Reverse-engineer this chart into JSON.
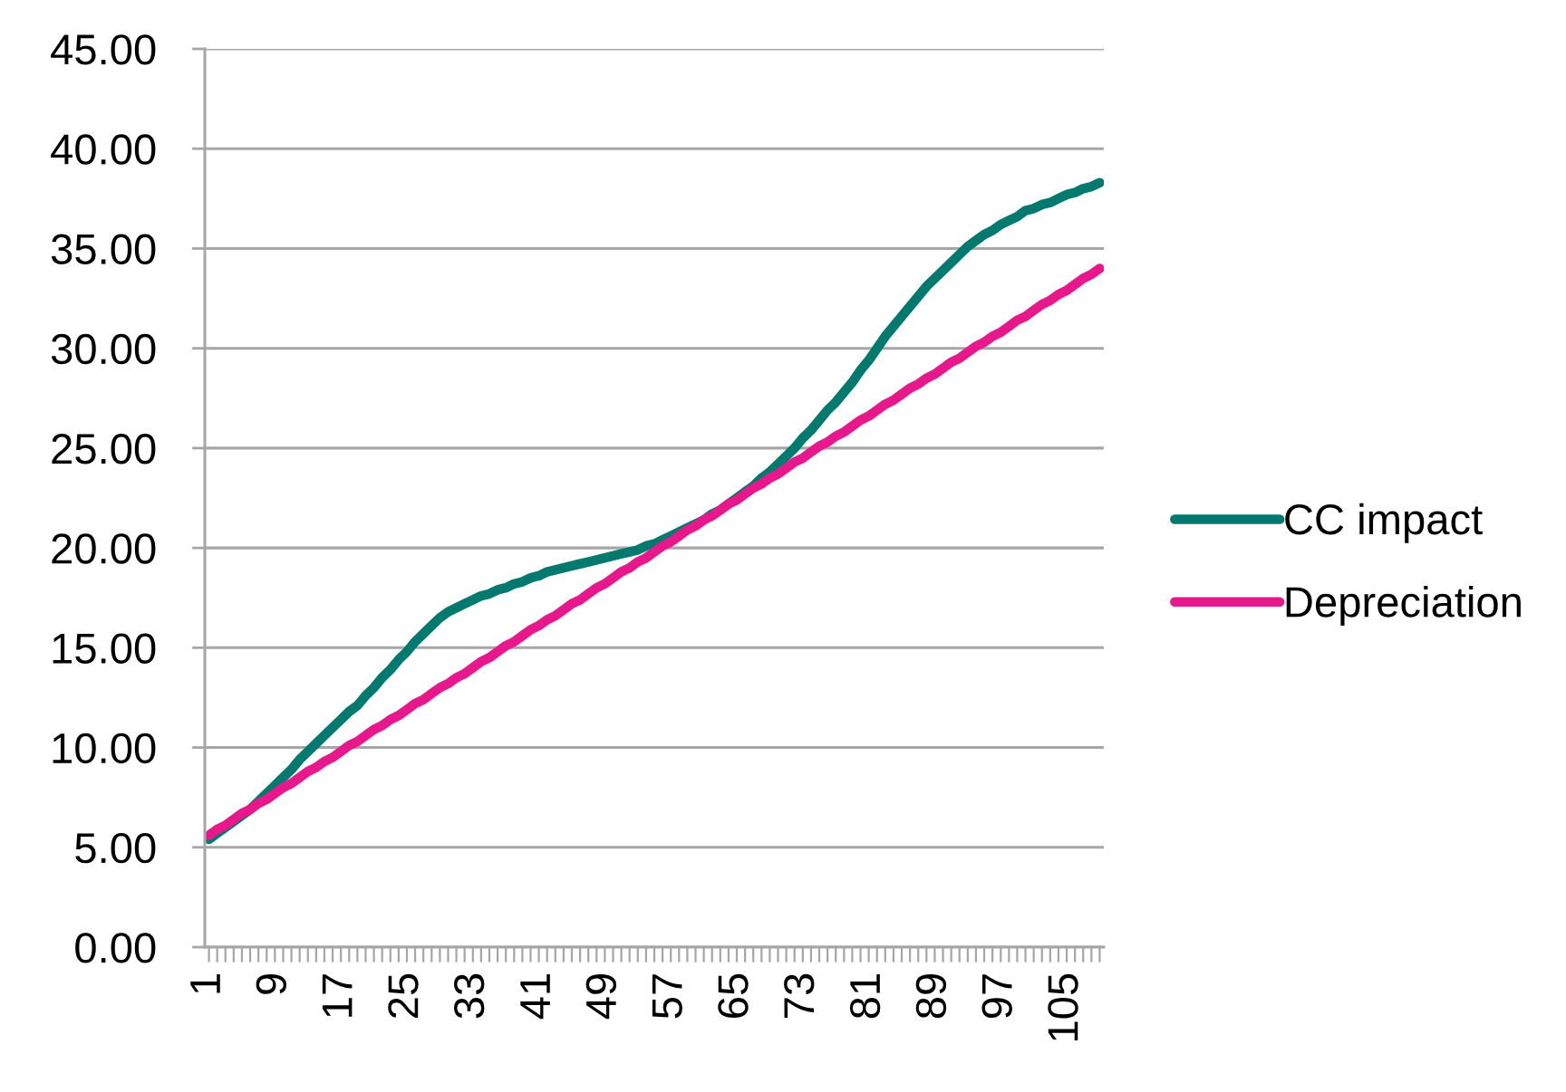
{
  "chart_data": {
    "type": "line",
    "categories": [
      "1",
      null,
      null,
      null,
      null,
      null,
      null,
      null,
      "9",
      null,
      null,
      null,
      null,
      null,
      null,
      null,
      "17",
      null,
      null,
      null,
      null,
      null,
      null,
      null,
      "25",
      null,
      null,
      null,
      null,
      null,
      null,
      null,
      "33",
      null,
      null,
      null,
      null,
      null,
      null,
      null,
      "41",
      null,
      null,
      null,
      null,
      null,
      null,
      null,
      "49",
      null,
      null,
      null,
      null,
      null,
      null,
      null,
      "57",
      null,
      null,
      null,
      null,
      null,
      null,
      null,
      "65",
      null,
      null,
      null,
      null,
      null,
      null,
      null,
      "73",
      null,
      null,
      null,
      null,
      null,
      null,
      null,
      "81",
      null,
      null,
      null,
      null,
      null,
      null,
      null,
      "89",
      null,
      null,
      null,
      null,
      null,
      null,
      null,
      "97",
      null,
      null,
      null,
      null,
      null,
      null,
      null,
      "105",
      null,
      null,
      null,
      null
    ],
    "series": [
      {
        "name": "CC impact",
        "color": "#007a6e",
        "values": [
          5.4,
          5.7,
          6.0,
          6.3,
          6.6,
          6.9,
          7.3,
          7.7,
          8.1,
          8.5,
          8.9,
          9.4,
          9.8,
          10.2,
          10.6,
          11.0,
          11.4,
          11.8,
          12.1,
          12.6,
          13.0,
          13.5,
          13.9,
          14.4,
          14.8,
          15.3,
          15.7,
          16.1,
          16.5,
          16.8,
          17.0,
          17.2,
          17.4,
          17.6,
          17.7,
          17.9,
          18.0,
          18.2,
          18.3,
          18.5,
          18.6,
          18.8,
          18.9,
          19.0,
          19.1,
          19.2,
          19.3,
          19.4,
          19.5,
          19.6,
          19.7,
          19.8,
          19.9,
          20.1,
          20.2,
          20.4,
          20.6,
          20.8,
          21.0,
          21.2,
          21.4,
          21.7,
          21.9,
          22.2,
          22.5,
          22.8,
          23.1,
          23.5,
          23.8,
          24.2,
          24.6,
          25.0,
          25.5,
          25.9,
          26.4,
          26.9,
          27.3,
          27.8,
          28.3,
          28.9,
          29.4,
          30.0,
          30.6,
          31.1,
          31.6,
          32.1,
          32.6,
          33.1,
          33.5,
          33.9,
          34.3,
          34.7,
          35.1,
          35.4,
          35.7,
          35.9,
          36.2,
          36.4,
          36.6,
          36.9,
          37.0,
          37.2,
          37.3,
          37.5,
          37.7,
          37.8,
          38.0,
          38.1,
          38.3
        ]
      },
      {
        "name": "Depreciation",
        "color": "#e8178c",
        "values": [
          5.6,
          5.9,
          6.1,
          6.4,
          6.7,
          6.9,
          7.2,
          7.4,
          7.7,
          8.0,
          8.2,
          8.5,
          8.8,
          9.0,
          9.3,
          9.5,
          9.8,
          10.1,
          10.3,
          10.6,
          10.9,
          11.1,
          11.4,
          11.6,
          11.9,
          12.2,
          12.4,
          12.7,
          13.0,
          13.2,
          13.5,
          13.7,
          14.0,
          14.3,
          14.5,
          14.8,
          15.1,
          15.3,
          15.6,
          15.9,
          16.1,
          16.4,
          16.6,
          16.9,
          17.2,
          17.4,
          17.7,
          18.0,
          18.2,
          18.5,
          18.8,
          19.0,
          19.3,
          19.5,
          19.8,
          20.1,
          20.3,
          20.6,
          20.9,
          21.1,
          21.4,
          21.6,
          21.9,
          22.2,
          22.4,
          22.7,
          23.0,
          23.2,
          23.5,
          23.7,
          24.0,
          24.3,
          24.5,
          24.8,
          25.1,
          25.3,
          25.6,
          25.8,
          26.1,
          26.4,
          26.6,
          26.9,
          27.2,
          27.4,
          27.7,
          28.0,
          28.2,
          28.5,
          28.7,
          29.0,
          29.3,
          29.5,
          29.8,
          30.1,
          30.3,
          30.6,
          30.8,
          31.1,
          31.4,
          31.6,
          31.9,
          32.2,
          32.4,
          32.7,
          32.9,
          33.2,
          33.5,
          33.7,
          34.0
        ]
      }
    ],
    "ylim": [
      0,
      45
    ],
    "yticks": [
      {
        "value": 0,
        "label": "0.00"
      },
      {
        "value": 5,
        "label": "5.00"
      },
      {
        "value": 10,
        "label": "10.00"
      },
      {
        "value": 15,
        "label": "15.00"
      },
      {
        "value": 20,
        "label": "20.00"
      },
      {
        "value": 25,
        "label": "25.00"
      },
      {
        "value": 30,
        "label": "30.00"
      },
      {
        "value": 35,
        "label": "35.00"
      },
      {
        "value": 40,
        "label": "40.00"
      },
      {
        "value": 45,
        "label": "45.00"
      }
    ],
    "grid": "y",
    "legend": "right",
    "line_style": "solid"
  }
}
